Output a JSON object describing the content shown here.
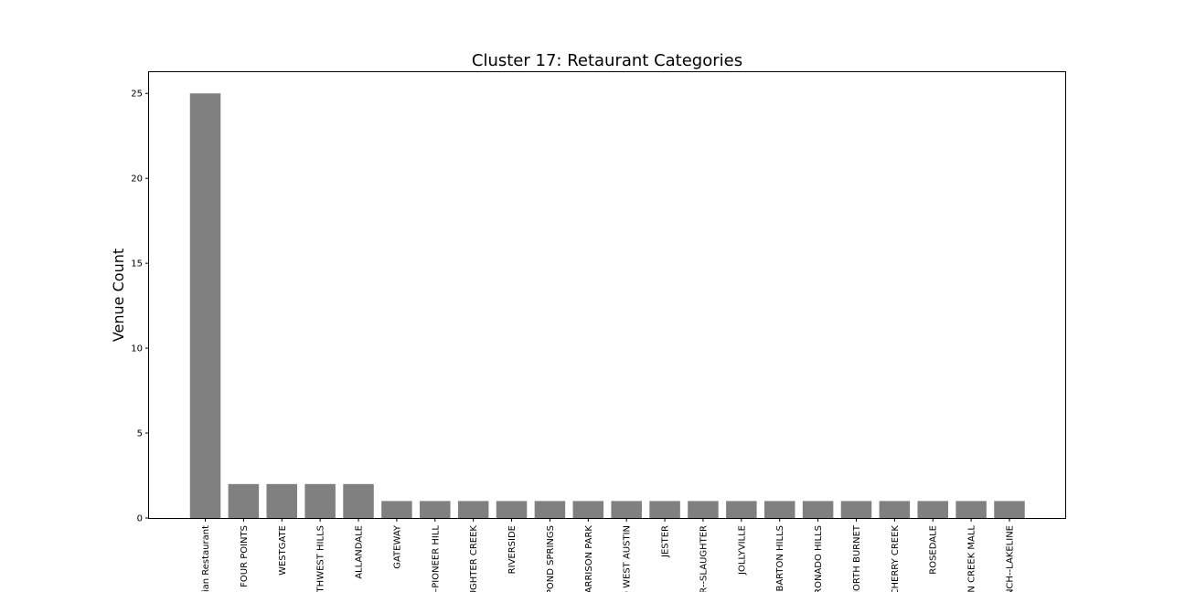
{
  "chart_data": {
    "type": "bar",
    "title": "Cluster 17: Retaurant Categories",
    "xlabel": "",
    "ylabel": "Venue Count",
    "ylim": [
      0,
      26.25
    ],
    "yticks": [
      "0",
      "5",
      "10",
      "15",
      "20",
      "25"
    ],
    "grid": false,
    "bar_color": "#808080",
    "categories": [
      "ian Restaurant",
      "FOUR POINTS",
      "WESTGATE",
      "THWEST HILLS",
      "ALLANDALE",
      "GATEWAY",
      "–PIONEER HILL",
      "UGHTER CREEK",
      "RIVERSIDE",
      "POND SPRINGS",
      "ARRISON PARK",
      "D WEST AUSTIN",
      "JESTER",
      "R--SLAUGHTER",
      "JOLLYVILLE",
      "BARTON HILLS",
      "RONADO HILLS",
      "IORTH BURNET",
      "CHERRY CREEK",
      "ROSEDALE",
      "N CREEK MALL",
      "NCH--LAKELINE"
    ],
    "values": [
      25,
      2,
      2,
      2,
      2,
      1,
      1,
      1,
      1,
      1,
      1,
      1,
      1,
      1,
      1,
      1,
      1,
      1,
      1,
      1,
      1,
      1
    ]
  }
}
